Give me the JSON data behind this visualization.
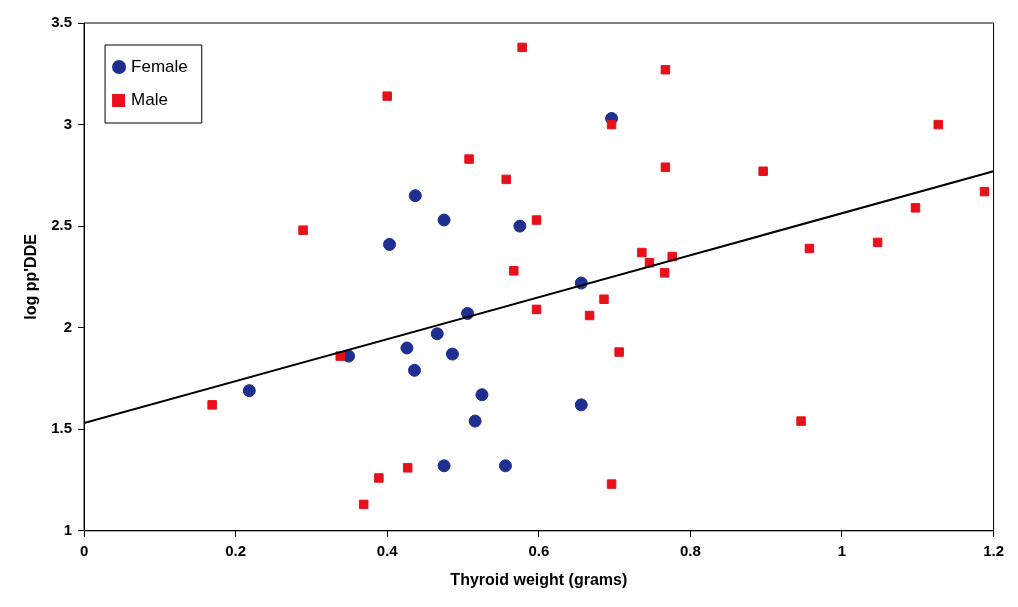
{
  "chart_data": {
    "type": "scatter",
    "xlabel": "Thyroid weight (grams)",
    "ylabel": "log pp'DDE",
    "xlim": [
      0,
      1.2
    ],
    "xticks": [
      0,
      0.2,
      0.4,
      0.6,
      0.8,
      1,
      1.2
    ],
    "ylim": [
      1,
      3.5
    ],
    "yticks": [
      1,
      1.5,
      2,
      2.5,
      3,
      3.5
    ],
    "grid": false,
    "legend": "top left",
    "series": [
      {
        "name": "Female",
        "color": "#1f2f8f",
        "marker": "circle",
        "x": [
          0.218,
          0.349,
          0.403,
          0.437,
          0.475,
          0.575,
          0.696,
          0.656,
          0.506,
          0.466,
          0.426,
          0.486,
          0.436,
          0.525,
          0.516,
          0.656,
          0.475,
          0.556
        ],
        "values": [
          1.69,
          1.86,
          2.41,
          2.65,
          2.53,
          2.5,
          3.03,
          2.22,
          2.07,
          1.97,
          1.9,
          1.87,
          1.79,
          1.67,
          1.54,
          1.62,
          1.32,
          1.32
        ]
      },
      {
        "name": "Male",
        "color": "#e8101a",
        "marker": "square",
        "x": [
          0.169,
          0.289,
          0.338,
          0.369,
          0.389,
          0.4,
          0.427,
          0.508,
          0.557,
          0.567,
          0.578,
          0.597,
          0.597,
          0.667,
          0.686,
          0.696,
          0.696,
          0.706,
          0.736,
          0.746,
          0.766,
          0.767,
          0.767,
          0.776,
          0.896,
          0.946,
          0.957,
          1.047,
          1.097,
          1.127,
          1.188
        ],
        "values": [
          1.62,
          2.48,
          1.86,
          1.13,
          1.26,
          3.14,
          1.31,
          2.83,
          2.73,
          2.28,
          3.38,
          2.53,
          2.09,
          2.06,
          2.14,
          3,
          1.23,
          1.88,
          2.37,
          2.32,
          2.27,
          3.27,
          2.79,
          2.35,
          2.77,
          1.54,
          2.39,
          2.42,
          2.59,
          3,
          2.67
        ]
      },
      {
        "type": "line",
        "color": "#000000",
        "marker": "none",
        "x": [
          0,
          1.2
        ],
        "values": [
          1.53,
          2.77
        ]
      }
    ]
  }
}
